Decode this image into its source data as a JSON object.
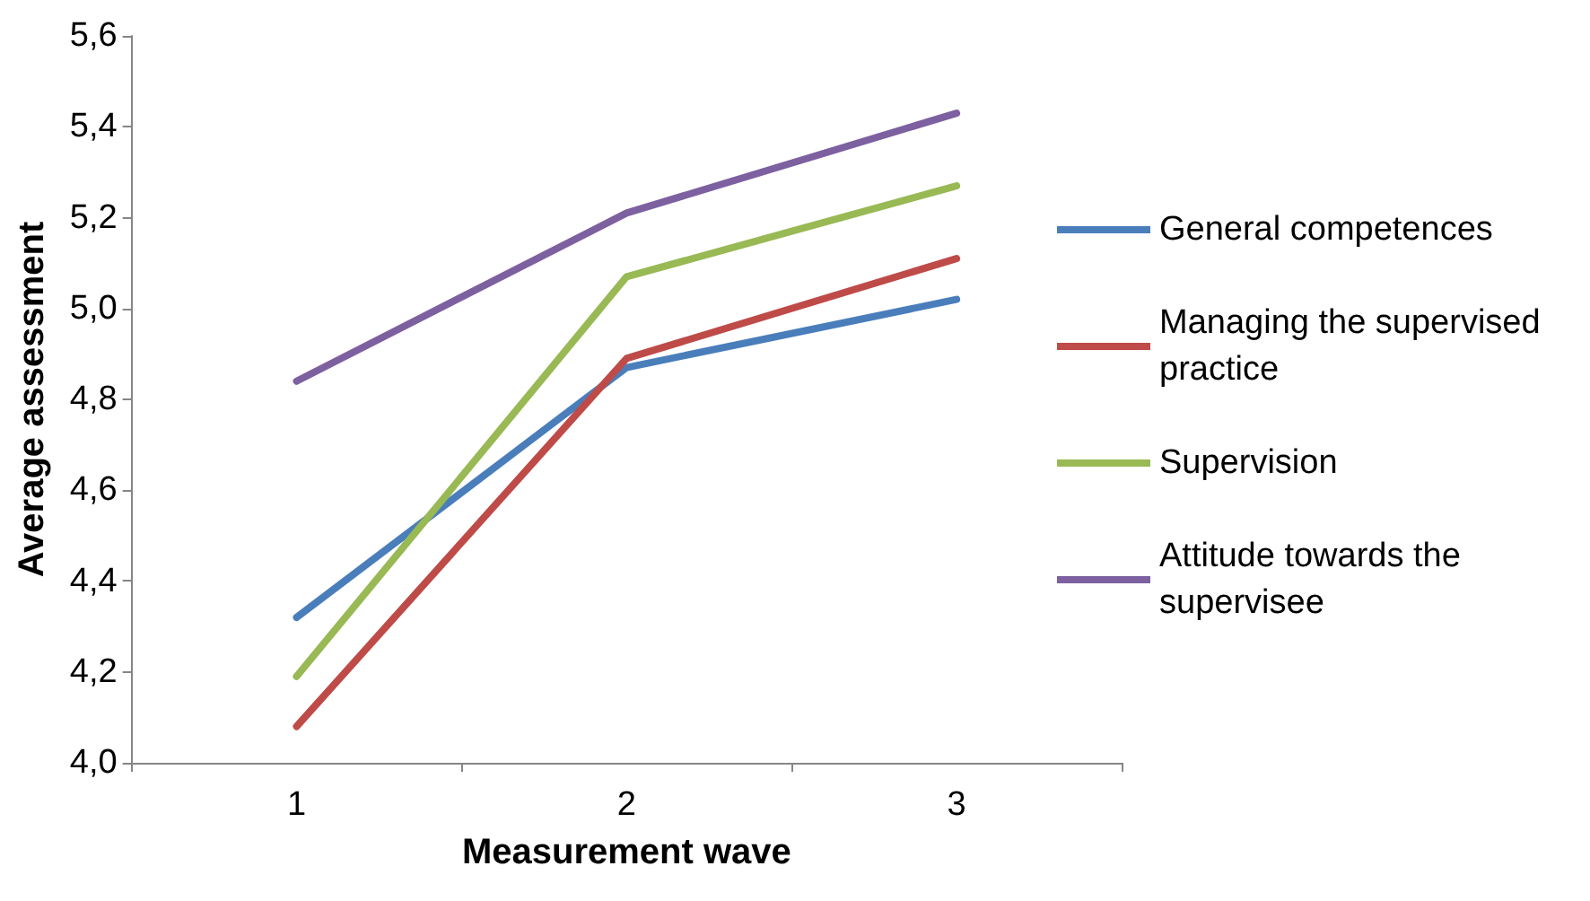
{
  "chart_data": {
    "type": "line",
    "xlabel": "Measurement wave",
    "ylabel": "Average assessment",
    "categories": [
      "1",
      "2",
      "3"
    ],
    "series": [
      {
        "name": "General competences",
        "color": "#4a7ebb",
        "values": [
          4.32,
          4.87,
          5.02
        ]
      },
      {
        "name": "Managing the supervised practice",
        "color": "#be4b48",
        "values": [
          4.08,
          4.89,
          5.11
        ]
      },
      {
        "name": "Supervision",
        "color": "#98b954",
        "values": [
          4.19,
          5.07,
          5.27
        ]
      },
      {
        "name": "Attitude towards the supervisee",
        "color": "#7d60a0",
        "values": [
          4.84,
          5.21,
          5.43
        ]
      }
    ],
    "ylim": [
      4.0,
      5.6
    ],
    "yticks": [
      {
        "value": 4.0,
        "label": "4,0"
      },
      {
        "value": 4.2,
        "label": "4,2"
      },
      {
        "value": 4.4,
        "label": "4,4"
      },
      {
        "value": 4.6,
        "label": "4,6"
      },
      {
        "value": 4.8,
        "label": "4,8"
      },
      {
        "value": 5.0,
        "label": "5,0"
      },
      {
        "value": 5.2,
        "label": "5,2"
      },
      {
        "value": 5.4,
        "label": "5,4"
      },
      {
        "value": 5.6,
        "label": "5,6"
      }
    ],
    "grid": false,
    "legend": "right",
    "marker": "none",
    "line_style": "solid"
  }
}
